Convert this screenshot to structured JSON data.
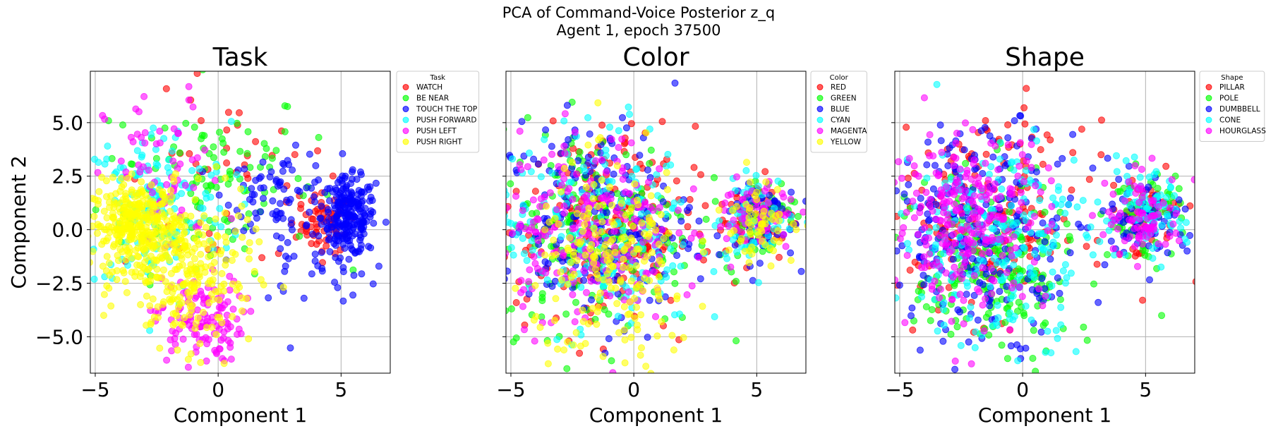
{
  "figure": {
    "title_line1": "PCA of Command-Voice Posterior z_q",
    "title_line2": "Agent 1, epoch 37500"
  },
  "chart_data": [
    {
      "type": "scatter",
      "title": "Task",
      "xlabel": "Component 1",
      "ylabel": "Component 2",
      "xlim": [
        -5.2,
        7.0
      ],
      "ylim": [
        -6.7,
        7.4
      ],
      "xticks": [
        -5,
        0,
        5
      ],
      "yticks": [
        -5.0,
        -2.5,
        0.0,
        2.5,
        5.0
      ],
      "xtick_labels": [
        "−5",
        "0",
        "5"
      ],
      "ytick_labels": [
        "−5.0",
        "−2.5",
        "0.0",
        "2.5",
        "5.0"
      ],
      "show_ytick_labels": true,
      "grid": true,
      "legend": {
        "title": "Task",
        "placement": "outside-top-right",
        "entries": [
          "WATCH",
          "BE NEAR",
          "TOUCH THE TOP",
          "PUSH FORWARD",
          "PUSH LEFT",
          "PUSH RIGHT"
        ]
      },
      "series": [
        {
          "name": "WATCH",
          "color": "#ff0000",
          "clusters": [
            {
              "cx": 4.4,
              "cy": 0.3,
              "sx": 0.5,
              "sy": 0.7,
              "n": 60
            },
            {
              "cx": 0.6,
              "cy": 1.8,
              "sx": 2.3,
              "sy": 2.2,
              "n": 50
            }
          ]
        },
        {
          "name": "BE NEAR",
          "color": "#00ff00",
          "clusters": [
            {
              "cx": -0.5,
              "cy": 2.5,
              "sx": 2.2,
              "sy": 2.2,
              "n": 110
            }
          ]
        },
        {
          "name": "TOUCH THE TOP",
          "color": "#0000ff",
          "clusters": [
            {
              "cx": 5.3,
              "cy": 0.6,
              "sx": 0.55,
              "sy": 0.9,
              "n": 230
            },
            {
              "cx": 2.5,
              "cy": 1.8,
              "sx": 1.1,
              "sy": 0.9,
              "n": 70
            },
            {
              "cx": 3.8,
              "cy": -1.5,
              "sx": 1.5,
              "sy": 1.0,
              "n": 40
            }
          ]
        },
        {
          "name": "PUSH FORWARD",
          "color": "#00ffff",
          "clusters": [
            {
              "cx": -2.5,
              "cy": 1.0,
              "sx": 1.5,
              "sy": 2.0,
              "n": 160
            }
          ]
        },
        {
          "name": "PUSH LEFT",
          "color": "#ff00ff",
          "clusters": [
            {
              "cx": -0.8,
              "cy": -4.2,
              "sx": 0.9,
              "sy": 1.0,
              "n": 120
            },
            {
              "cx": -2.2,
              "cy": 2.4,
              "sx": 1.2,
              "sy": 2.0,
              "n": 60
            }
          ]
        },
        {
          "name": "PUSH RIGHT",
          "color": "#ffff00",
          "clusters": [
            {
              "cx": -3.3,
              "cy": 0.2,
              "sx": 0.9,
              "sy": 1.0,
              "n": 320
            },
            {
              "cx": -1.2,
              "cy": -2.0,
              "sx": 1.3,
              "sy": 1.7,
              "n": 240
            }
          ]
        }
      ]
    },
    {
      "type": "scatter",
      "title": "Color",
      "xlabel": "Component 1",
      "ylabel": "",
      "xlim": [
        -5.2,
        7.0
      ],
      "ylim": [
        -6.7,
        7.4
      ],
      "xticks": [
        -5,
        0,
        5
      ],
      "yticks": [
        -5.0,
        -2.5,
        0.0,
        2.5,
        5.0
      ],
      "xtick_labels": [
        "−5",
        "0",
        "5"
      ],
      "ytick_labels": [],
      "show_ytick_labels": false,
      "grid": true,
      "legend": {
        "title": "Color",
        "placement": "outside-top-right",
        "entries": [
          "RED",
          "GREEN",
          "BLUE",
          "CYAN",
          "MAGENTA",
          "YELLOW"
        ]
      },
      "series": [
        {
          "name": "RED",
          "color": "#ff0000",
          "clusters": [
            {
              "cx": -1.5,
              "cy": 0.0,
              "sx": 2.0,
              "sy": 2.4,
              "n": 200
            },
            {
              "cx": 5.0,
              "cy": 0.6,
              "sx": 0.8,
              "sy": 1.0,
              "n": 60
            }
          ]
        },
        {
          "name": "GREEN",
          "color": "#00ff00",
          "clusters": [
            {
              "cx": -1.5,
              "cy": 0.0,
              "sx": 2.0,
              "sy": 2.4,
              "n": 200
            },
            {
              "cx": 5.0,
              "cy": 0.6,
              "sx": 0.8,
              "sy": 1.0,
              "n": 60
            }
          ]
        },
        {
          "name": "BLUE",
          "color": "#0000ff",
          "clusters": [
            {
              "cx": -1.5,
              "cy": 0.3,
              "sx": 2.0,
              "sy": 2.4,
              "n": 200
            },
            {
              "cx": 5.0,
              "cy": 0.6,
              "sx": 0.8,
              "sy": 1.0,
              "n": 60
            }
          ]
        },
        {
          "name": "CYAN",
          "color": "#00ffff",
          "clusters": [
            {
              "cx": -1.5,
              "cy": 0.0,
              "sx": 2.0,
              "sy": 2.4,
              "n": 200
            },
            {
              "cx": 5.0,
              "cy": 0.6,
              "sx": 0.8,
              "sy": 1.0,
              "n": 60
            }
          ]
        },
        {
          "name": "MAGENTA",
          "color": "#ff00ff",
          "clusters": [
            {
              "cx": -2.0,
              "cy": 0.0,
              "sx": 1.8,
              "sy": 2.2,
              "n": 220
            },
            {
              "cx": 5.0,
              "cy": 0.6,
              "sx": 0.8,
              "sy": 1.0,
              "n": 60
            }
          ]
        },
        {
          "name": "YELLOW",
          "color": "#ffff00",
          "clusters": [
            {
              "cx": -0.8,
              "cy": -2.0,
              "sx": 1.6,
              "sy": 2.4,
              "n": 200
            },
            {
              "cx": 5.0,
              "cy": 0.6,
              "sx": 0.8,
              "sy": 1.0,
              "n": 60
            }
          ]
        }
      ]
    },
    {
      "type": "scatter",
      "title": "Shape",
      "xlabel": "Component 1",
      "ylabel": "",
      "xlim": [
        -5.2,
        7.0
      ],
      "ylim": [
        -6.7,
        7.4
      ],
      "xticks": [
        -5,
        0,
        5
      ],
      "yticks": [
        -5.0,
        -2.5,
        0.0,
        2.5,
        5.0
      ],
      "xtick_labels": [
        "−5",
        "0",
        "5"
      ],
      "ytick_labels": [],
      "show_ytick_labels": false,
      "grid": true,
      "legend": {
        "title": "Shape",
        "placement": "outside-top-right",
        "entries": [
          "PILLAR",
          "POLE",
          "DUMBBELL",
          "CONE",
          "HOURGLASS"
        ]
      },
      "series": [
        {
          "name": "PILLAR",
          "color": "#ff0000",
          "clusters": [
            {
              "cx": -1.5,
              "cy": 0.5,
              "sx": 2.0,
              "sy": 2.2,
              "n": 180
            },
            {
              "cx": 5.0,
              "cy": 0.6,
              "sx": 0.8,
              "sy": 1.0,
              "n": 50
            }
          ]
        },
        {
          "name": "POLE",
          "color": "#00ff00",
          "clusters": [
            {
              "cx": -1.2,
              "cy": -2.0,
              "sx": 1.6,
              "sy": 2.2,
              "n": 220
            },
            {
              "cx": 5.0,
              "cy": 0.6,
              "sx": 0.8,
              "sy": 1.0,
              "n": 60
            }
          ]
        },
        {
          "name": "DUMBBELL",
          "color": "#0000ff",
          "clusters": [
            {
              "cx": -1.5,
              "cy": 0.0,
              "sx": 2.0,
              "sy": 2.4,
              "n": 260
            },
            {
              "cx": 5.0,
              "cy": 0.6,
              "sx": 0.8,
              "sy": 1.0,
              "n": 70
            }
          ]
        },
        {
          "name": "CONE",
          "color": "#00ffff",
          "clusters": [
            {
              "cx": -1.0,
              "cy": -0.5,
              "sx": 2.0,
              "sy": 2.4,
              "n": 220
            },
            {
              "cx": 5.0,
              "cy": 0.6,
              "sx": 0.8,
              "sy": 1.0,
              "n": 70
            }
          ]
        },
        {
          "name": "HOURGLASS",
          "color": "#ff00ff",
          "clusters": [
            {
              "cx": -2.2,
              "cy": 0.5,
              "sx": 1.6,
              "sy": 2.0,
              "n": 260
            },
            {
              "cx": 5.0,
              "cy": 0.6,
              "sx": 0.8,
              "sy": 1.0,
              "n": 80
            }
          ]
        }
      ]
    }
  ]
}
